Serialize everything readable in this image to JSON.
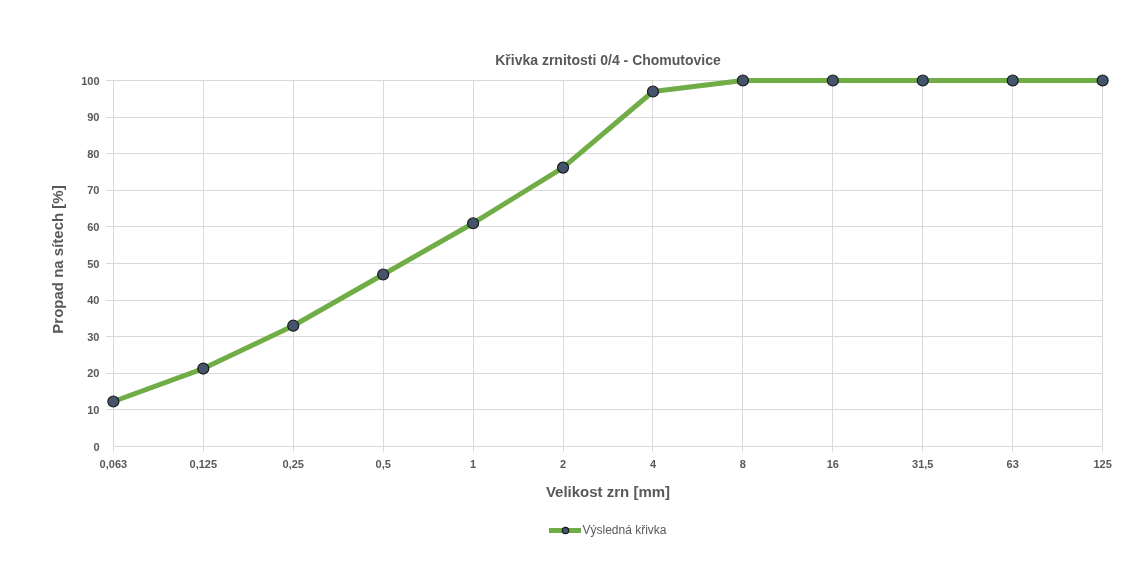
{
  "chart_data": {
    "type": "line",
    "title": "Křivka zrnitosti 0/4 - Chomutovice",
    "xlabel": "Velikost zrn [mm]",
    "ylabel": "Propad na sítech [%]",
    "categories": [
      "0,063",
      "0,125",
      "0,25",
      "0,5",
      "1",
      "2",
      "4",
      "8",
      "16",
      "31,5",
      "63",
      "125"
    ],
    "series": [
      {
        "name": "Výsledná křivka",
        "color": "#70ad47",
        "values": [
          12.3,
          21.3,
          33,
          47,
          61,
          76.2,
          97,
          100,
          100,
          100,
          100,
          100
        ]
      }
    ],
    "ylim": [
      0,
      100
    ],
    "yticks": [
      0,
      10,
      20,
      30,
      40,
      50,
      60,
      70,
      80,
      90,
      100
    ],
    "grid": true,
    "legend": "bottom",
    "marker": "circle",
    "line_style": "solid"
  }
}
